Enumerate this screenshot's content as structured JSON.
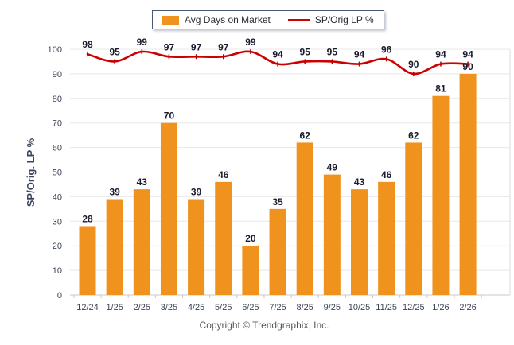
{
  "legend": {
    "items": [
      {
        "label": "Avg Days on Market",
        "type": "bar",
        "color": "#F0921E"
      },
      {
        "label": "SP/Orig LP %",
        "type": "line",
        "color": "#CC0000"
      }
    ]
  },
  "footer": {
    "copyright": "Copyright © Trendgraphix, Inc."
  },
  "chart_data": {
    "type": "combo",
    "categories": [
      "12/24",
      "1/25",
      "2/25",
      "3/25",
      "4/25",
      "5/25",
      "6/25",
      "7/25",
      "8/25",
      "9/25",
      "10/25",
      "11/25",
      "12/25",
      "1/26",
      "2/26"
    ],
    "series": [
      {
        "name": "Avg Days on Market",
        "type": "bar",
        "color": "#F0921E",
        "values": [
          28,
          39,
          43,
          70,
          39,
          46,
          20,
          35,
          62,
          49,
          43,
          46,
          62,
          81,
          90
        ]
      },
      {
        "name": "SP/Orig LP %",
        "type": "line",
        "color": "#CC0000",
        "marker_color": "#B30000",
        "values": [
          98,
          95,
          99,
          97,
          97,
          97,
          99,
          94,
          95,
          95,
          94,
          96,
          90,
          94,
          94
        ]
      }
    ],
    "title": "",
    "xlabel": "",
    "ylabel": "SP/Orig. LP %",
    "ylim": [
      0,
      100
    ],
    "ytick_step": 10,
    "grid": "horizontal",
    "legend_position": "top-center",
    "colors": {
      "grid": "#E8E8E8",
      "axis": "#C9C9C9",
      "plot_border": "#DCDCDC",
      "tick_label": "#3C4454",
      "data_label": "#1A1A2E",
      "axis_title": "#39455E",
      "copyright": "#595959"
    }
  }
}
